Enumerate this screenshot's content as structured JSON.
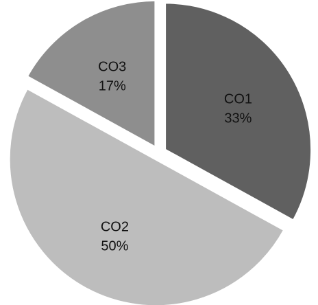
{
  "chart_data": {
    "type": "pie",
    "title": "",
    "slices": [
      {
        "name": "CO1",
        "value": 33,
        "percent_label": "33%",
        "color": "#606060"
      },
      {
        "name": "CO2",
        "value": 50,
        "percent_label": "50%",
        "color": "#bdbdbd"
      },
      {
        "name": "CO3",
        "value": 17,
        "percent_label": "17%",
        "color": "#8e8e8e"
      }
    ],
    "start_angle": "12 o'clock",
    "direction": "clockwise",
    "exploded": true,
    "legend": "none"
  }
}
